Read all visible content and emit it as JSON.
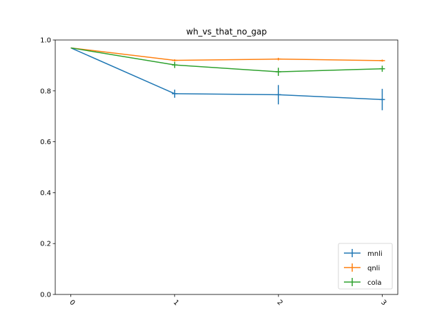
{
  "chart_data": {
    "type": "line",
    "title": "wh_vs_that_no_gap",
    "xlabel": "",
    "ylabel": "",
    "x": [
      0,
      1,
      2,
      3
    ],
    "xticks": [
      "0",
      "1",
      "2",
      "3"
    ],
    "yticks": [
      "0.0",
      "0.2",
      "0.4",
      "0.6",
      "0.8",
      "1.0"
    ],
    "ylim": [
      0.0,
      1.0
    ],
    "xlim": [
      -0.15,
      3.15
    ],
    "grid": false,
    "legend_position": "lower-right",
    "series": [
      {
        "name": "mnli",
        "color": "#1f77b4",
        "values": [
          0.969,
          0.789,
          0.785,
          0.766
        ],
        "errors": [
          0.0,
          0.016,
          0.038,
          0.042
        ]
      },
      {
        "name": "qnli",
        "color": "#ff7f0e",
        "values": [
          0.969,
          0.92,
          0.925,
          0.919
        ],
        "errors": [
          0.0,
          0.004,
          0.005,
          0.004
        ]
      },
      {
        "name": "cola",
        "color": "#2ca02c",
        "values": [
          0.969,
          0.902,
          0.875,
          0.887
        ],
        "errors": [
          0.0,
          0.012,
          0.016,
          0.012
        ]
      }
    ]
  }
}
